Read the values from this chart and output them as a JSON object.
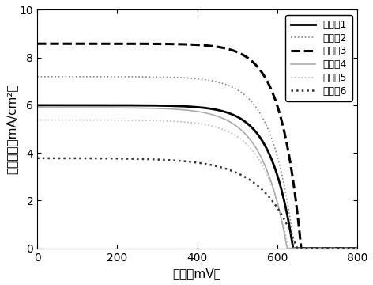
{
  "title": "",
  "xlabel": "电压（mV）",
  "ylabel": "电流密度（mA/cm²）",
  "xlim": [
    0,
    800
  ],
  "ylim": [
    0,
    10
  ],
  "xticks": [
    0,
    200,
    400,
    600,
    800
  ],
  "yticks": [
    0,
    2,
    4,
    6,
    8,
    10
  ],
  "curves": [
    {
      "label": "实施例1",
      "jsc": 6.0,
      "voc": 640,
      "ff_shape": 0.72,
      "color": "#000000",
      "linestyle": "solid",
      "linewidth": 2.0,
      "knee_sharpness": 18
    },
    {
      "label": "实施例2",
      "jsc": 7.2,
      "voc": 643,
      "ff_shape": 0.74,
      "color": "#888888",
      "linestyle": "dotted",
      "linewidth": 1.2,
      "knee_sharpness": 18
    },
    {
      "label": "实施例3",
      "jsc": 8.58,
      "voc": 660,
      "ff_shape": 0.76,
      "color": "#000000",
      "linestyle": "dashed",
      "linewidth": 2.2,
      "knee_sharpness": 20
    },
    {
      "label": "实施例4",
      "jsc": 5.9,
      "voc": 625,
      "ff_shape": 0.7,
      "color": "#aaaaaa",
      "linestyle": "solid",
      "linewidth": 1.2,
      "knee_sharpness": 16
    },
    {
      "label": "实施例5",
      "jsc": 5.38,
      "voc": 628,
      "ff_shape": 0.7,
      "color": "#bbbbbb",
      "linestyle": "dotted",
      "linewidth": 1.2,
      "knee_sharpness": 16
    },
    {
      "label": "实施例6",
      "jsc": 3.78,
      "voc": 650,
      "ff_shape": 0.65,
      "color": "#333333",
      "linestyle": "dotted",
      "linewidth": 1.8,
      "knee_sharpness": 12
    }
  ]
}
